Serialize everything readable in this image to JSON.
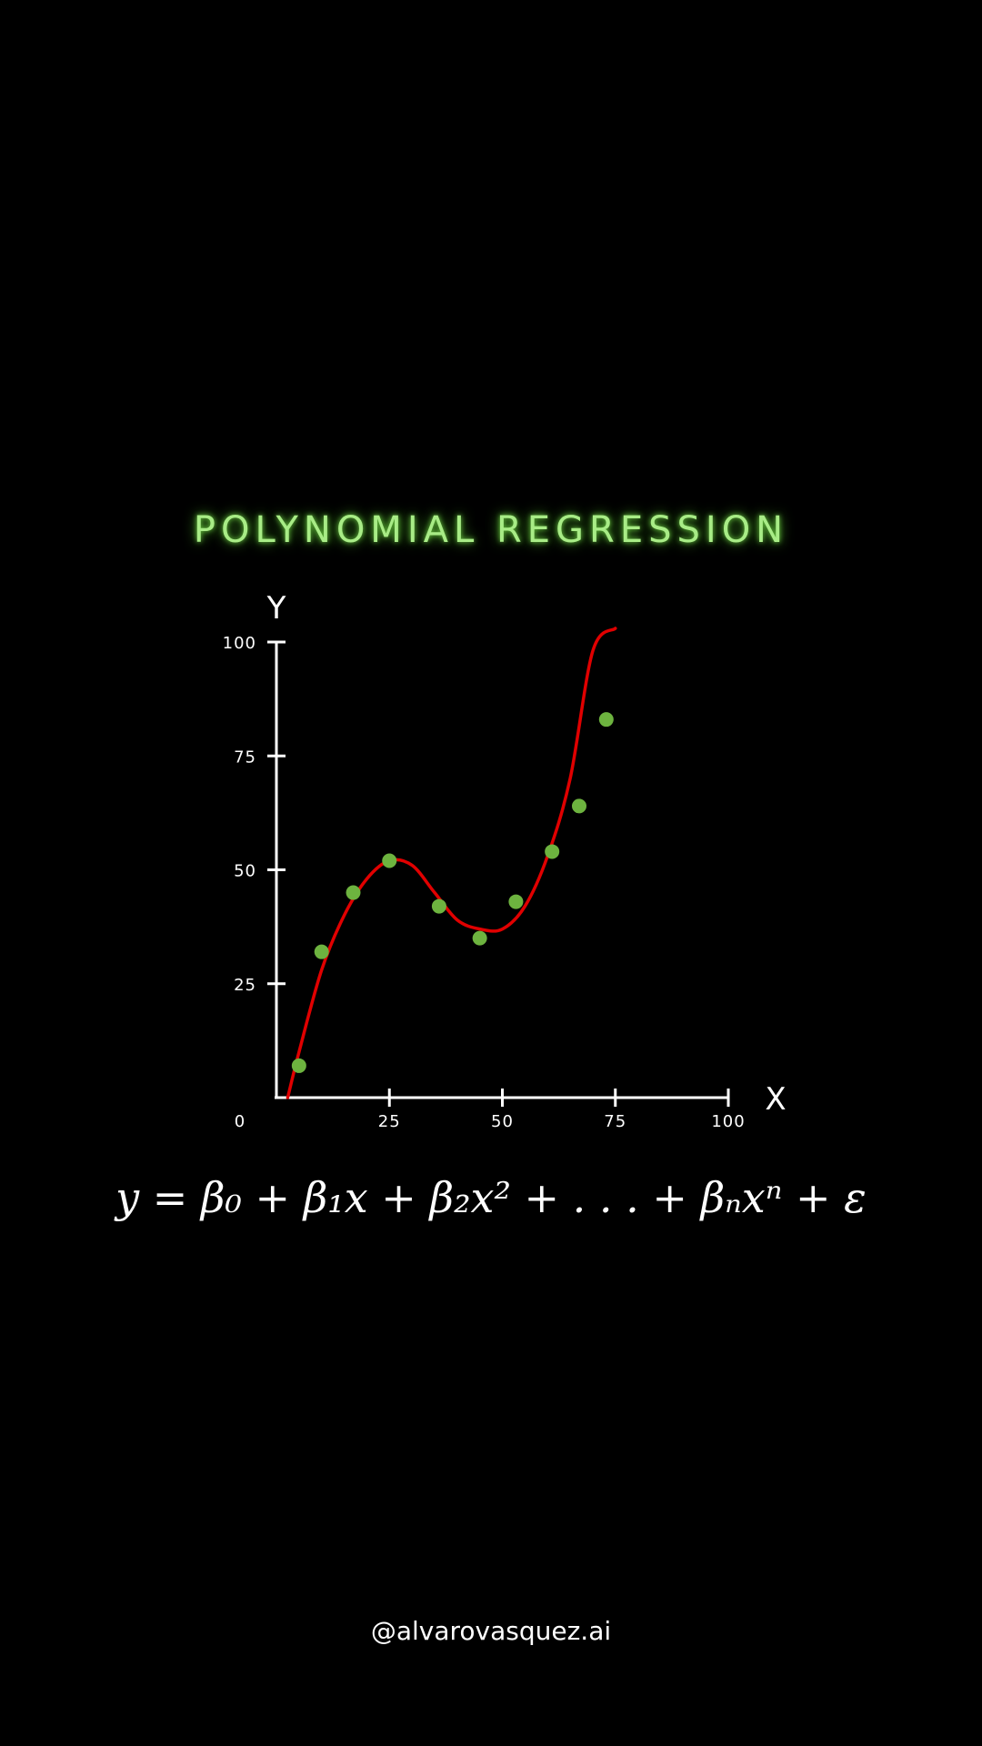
{
  "title": "POLYNOMIAL REGRESSION",
  "formula": "y = β₀ + β₁x + β₂x² + . . . + βₙxⁿ + ε",
  "handle": "@alvarovasquez.ai",
  "colors": {
    "title": "#a8ec86",
    "points": "#6db33f",
    "curve": "#e00000",
    "axes": "#ffffff",
    "background": "#000000"
  },
  "chart_data": {
    "type": "scatter",
    "title": "POLYNOMIAL REGRESSION",
    "xlabel": "X",
    "ylabel": "Y",
    "xlim": [
      0,
      100
    ],
    "ylim": [
      0,
      100
    ],
    "x_ticks": [
      25,
      50,
      75,
      100
    ],
    "y_ticks": [
      25,
      50,
      75,
      100
    ],
    "x_tick_labels": [
      "25",
      "50",
      "75",
      "100"
    ],
    "y_tick_labels": [
      "25",
      "50",
      "75",
      100
    ],
    "origin_label": "0",
    "grid": false,
    "series": [
      {
        "type": "scatter",
        "x": [
          5,
          10,
          17,
          25,
          36,
          45,
          53,
          61,
          67,
          73
        ],
        "y": [
          7,
          32,
          45,
          52,
          42,
          35,
          43,
          54,
          64,
          83
        ]
      },
      {
        "type": "line",
        "x": [
          2.5,
          5,
          10,
          15,
          20,
          25,
          30,
          35,
          40,
          45,
          50,
          55,
          60,
          65,
          70,
          75
        ],
        "y": [
          0,
          10,
          28,
          40,
          48,
          52,
          51,
          45,
          39,
          37,
          37,
          42,
          53,
          70,
          98,
          103
        ]
      }
    ]
  }
}
